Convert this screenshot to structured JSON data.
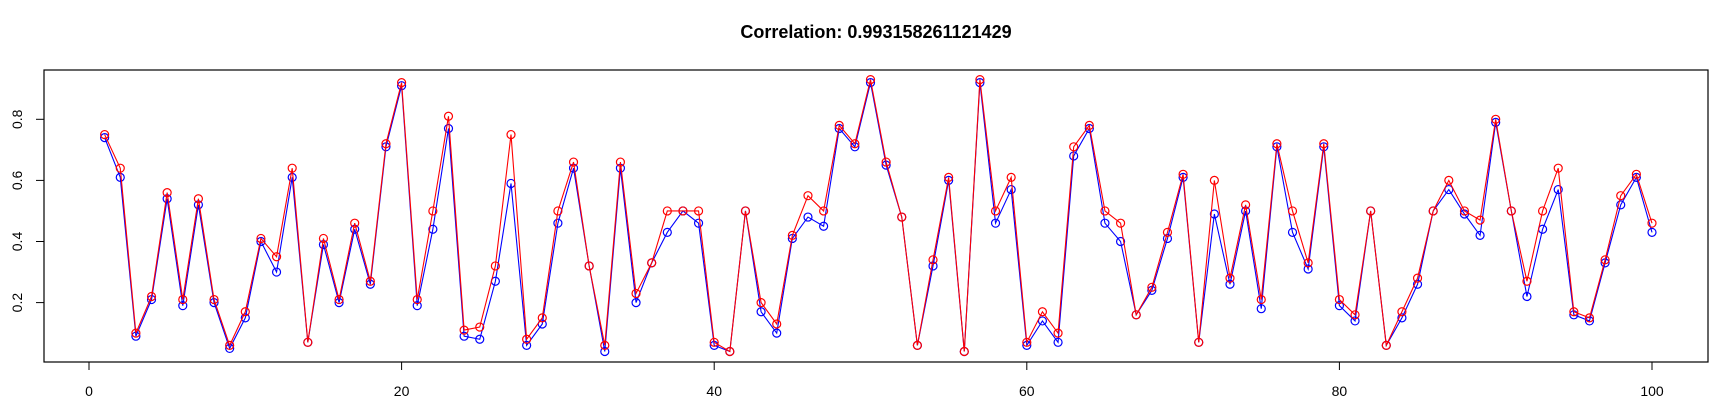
{
  "chart_data": {
    "type": "line",
    "title": "Correlation: 0.993158261121429",
    "xlabel": "",
    "ylabel": "",
    "xlim": [
      0,
      100
    ],
    "ylim": [
      0,
      0.92
    ],
    "xticks": [
      0,
      20,
      40,
      60,
      80,
      100
    ],
    "xtick_labels": [
      "0",
      "20",
      "40",
      "60",
      "80",
      "100"
    ],
    "yticks": [
      0.2,
      0.4,
      0.6,
      0.8
    ],
    "ytick_labels": [
      "0.2",
      "0.4",
      "0.6",
      "0.8"
    ],
    "grid": false,
    "markers": "open-circle",
    "x": [
      1,
      2,
      3,
      4,
      5,
      6,
      7,
      8,
      9,
      10,
      11,
      12,
      13,
      14,
      15,
      16,
      17,
      18,
      19,
      20,
      21,
      22,
      23,
      24,
      25,
      26,
      27,
      28,
      29,
      30,
      31,
      32,
      33,
      34,
      35,
      36,
      37,
      38,
      39,
      40,
      41,
      42,
      43,
      44,
      45,
      46,
      47,
      48,
      49,
      50,
      51,
      52,
      53,
      54,
      55,
      56,
      57,
      58,
      59,
      60,
      61,
      62,
      63,
      64,
      65,
      66,
      67,
      68,
      69,
      70,
      71,
      72,
      73,
      74,
      75,
      76,
      77,
      78,
      79,
      80,
      81,
      82,
      83,
      84,
      85,
      86,
      87,
      88,
      89,
      90,
      91,
      92,
      93,
      94,
      95,
      96,
      97,
      98,
      99,
      100
    ],
    "series": [
      {
        "color": "#0000ff",
        "values": [
          0.74,
          0.61,
          0.09,
          0.21,
          0.54,
          0.19,
          0.52,
          0.2,
          0.05,
          0.15,
          0.4,
          0.3,
          0.61,
          0.07,
          0.39,
          0.2,
          0.44,
          0.26,
          0.71,
          0.91,
          0.19,
          0.44,
          0.77,
          0.09,
          0.08,
          0.27,
          0.59,
          0.06,
          0.13,
          0.46,
          0.64,
          0.32,
          0.04,
          0.64,
          0.2,
          0.33,
          0.43,
          0.5,
          0.46,
          0.06,
          0.04,
          0.5,
          0.17,
          0.1,
          0.41,
          0.48,
          0.45,
          0.77,
          0.71,
          0.92,
          0.65,
          0.48,
          0.06,
          0.32,
          0.6,
          0.04,
          0.92,
          0.46,
          0.57,
          0.06,
          0.14,
          0.07,
          0.68,
          0.77,
          0.46,
          0.4,
          0.16,
          0.24,
          0.41,
          0.61,
          0.07,
          0.49,
          0.26,
          0.5,
          0.18,
          0.71,
          0.43,
          0.31,
          0.71,
          0.19,
          0.14,
          0.5,
          0.06,
          0.15,
          0.26,
          0.5,
          0.57,
          0.49,
          0.42,
          0.79,
          0.5,
          0.22,
          0.44,
          0.57,
          0.16,
          0.14,
          0.33,
          0.52,
          0.61,
          0.43
        ]
      },
      {
        "color": "#ff0000",
        "values": [
          0.75,
          0.64,
          0.1,
          0.22,
          0.56,
          0.21,
          0.54,
          0.21,
          0.06,
          0.17,
          0.41,
          0.35,
          0.64,
          0.07,
          0.41,
          0.21,
          0.46,
          0.27,
          0.72,
          0.92,
          0.21,
          0.5,
          0.81,
          0.11,
          0.12,
          0.32,
          0.75,
          0.08,
          0.15,
          0.5,
          0.66,
          0.32,
          0.06,
          0.66,
          0.23,
          0.33,
          0.5,
          0.5,
          0.5,
          0.07,
          0.04,
          0.5,
          0.2,
          0.13,
          0.42,
          0.55,
          0.5,
          0.78,
          0.72,
          0.93,
          0.66,
          0.48,
          0.06,
          0.34,
          0.61,
          0.04,
          0.93,
          0.5,
          0.61,
          0.07,
          0.17,
          0.1,
          0.71,
          0.78,
          0.5,
          0.46,
          0.16,
          0.25,
          0.43,
          0.62,
          0.07,
          0.6,
          0.28,
          0.52,
          0.21,
          0.72,
          0.5,
          0.33,
          0.72,
          0.21,
          0.16,
          0.5,
          0.06,
          0.17,
          0.28,
          0.5,
          0.6,
          0.5,
          0.47,
          0.8,
          0.5,
          0.27,
          0.5,
          0.64,
          0.17,
          0.15,
          0.34,
          0.55,
          0.62,
          0.46
        ]
      }
    ]
  }
}
